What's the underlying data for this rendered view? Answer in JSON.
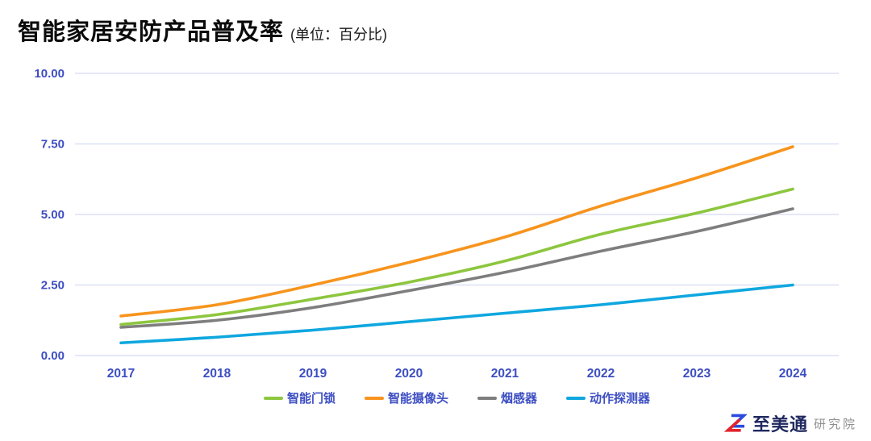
{
  "header": {
    "title": "智能家居安防产品普及率",
    "unit_label": "(单位：百分比)"
  },
  "chart_data": {
    "type": "line",
    "x": [
      "2017",
      "2018",
      "2019",
      "2020",
      "2021",
      "2022",
      "2023",
      "2024"
    ],
    "series": [
      {
        "name": "智能门锁",
        "color": "#8DC63F",
        "values": [
          1.1,
          1.45,
          2.0,
          2.6,
          3.35,
          4.3,
          5.05,
          5.9
        ]
      },
      {
        "name": "智能摄像头",
        "color": "#F7941D",
        "values": [
          1.4,
          1.8,
          2.5,
          3.3,
          4.2,
          5.3,
          6.3,
          7.4
        ]
      },
      {
        "name": "烟感器",
        "color": "#7E7E7E",
        "values": [
          1.0,
          1.25,
          1.7,
          2.3,
          2.95,
          3.7,
          4.4,
          5.2
        ]
      },
      {
        "name": "动作探测器",
        "color": "#0FA7DF",
        "values": [
          0.45,
          0.65,
          0.9,
          1.2,
          1.5,
          1.8,
          2.15,
          2.5
        ]
      }
    ],
    "ylim": [
      0,
      10
    ],
    "yticks": [
      0,
      2.5,
      5,
      7.5,
      10
    ],
    "ytick_labels": [
      "0.00",
      "2.50",
      "5.00",
      "7.50",
      "10.00"
    ],
    "grid": "horizontal-only",
    "legend_position": "bottom",
    "style": {
      "axis_label_color": "#3D4EC2",
      "gridline_color": "#DCE0F5",
      "line_width": 3.6,
      "smooth": true
    }
  },
  "branding": {
    "name": "至美通",
    "suffix": "研究院",
    "mark_blue": "#2B4BDF",
    "mark_red": "#E3242B"
  }
}
